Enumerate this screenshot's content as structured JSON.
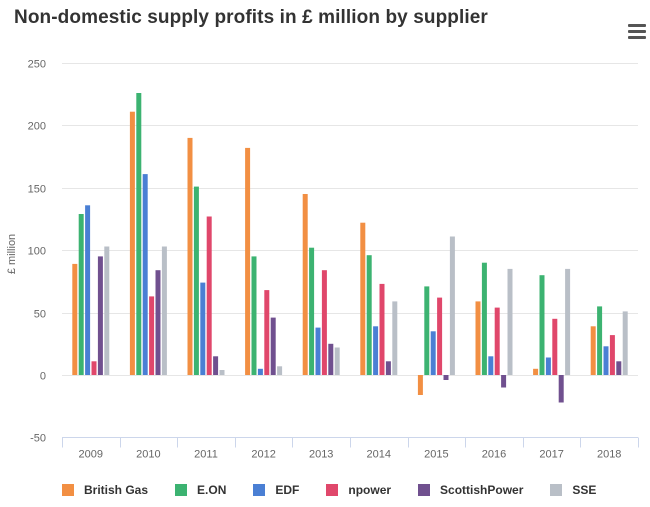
{
  "chart_data": {
    "type": "bar",
    "title": "Non-domestic supply profits in £ million by supplier",
    "xlabel": "",
    "ylabel": "£ million",
    "ylim": [
      -50,
      250
    ],
    "yticks": [
      -50,
      0,
      50,
      100,
      150,
      200,
      250
    ],
    "grid": true,
    "legend_position": "bottom",
    "categories": [
      "2009",
      "2010",
      "2011",
      "2012",
      "2013",
      "2014",
      "2015",
      "2016",
      "2017",
      "2018"
    ],
    "series": [
      {
        "name": "British Gas",
        "color": "#f28f43",
        "values": [
          89,
          211,
          190,
          182,
          145,
          122,
          -16,
          59,
          5,
          39
        ]
      },
      {
        "name": "E.ON",
        "color": "#3cb371",
        "values": [
          129,
          226,
          151,
          95,
          102,
          96,
          71,
          90,
          80,
          55
        ]
      },
      {
        "name": "EDF",
        "color": "#4a7fd4",
        "values": [
          136,
          161,
          74,
          5,
          38,
          39,
          35,
          15,
          14,
          23
        ]
      },
      {
        "name": "npower",
        "color": "#e0476b",
        "values": [
          11,
          63,
          127,
          68,
          84,
          73,
          62,
          54,
          45,
          32
        ]
      },
      {
        "name": "ScottishPower",
        "color": "#70508f",
        "values": [
          95,
          84,
          15,
          46,
          25,
          11,
          -4,
          -10,
          -22,
          11
        ]
      },
      {
        "name": "SSE",
        "color": "#b9bfc7",
        "values": [
          103,
          103,
          4,
          7,
          22,
          59,
          111,
          85,
          85,
          51
        ]
      }
    ]
  },
  "ui": {
    "menu_icon": "hamburger-menu-icon"
  }
}
